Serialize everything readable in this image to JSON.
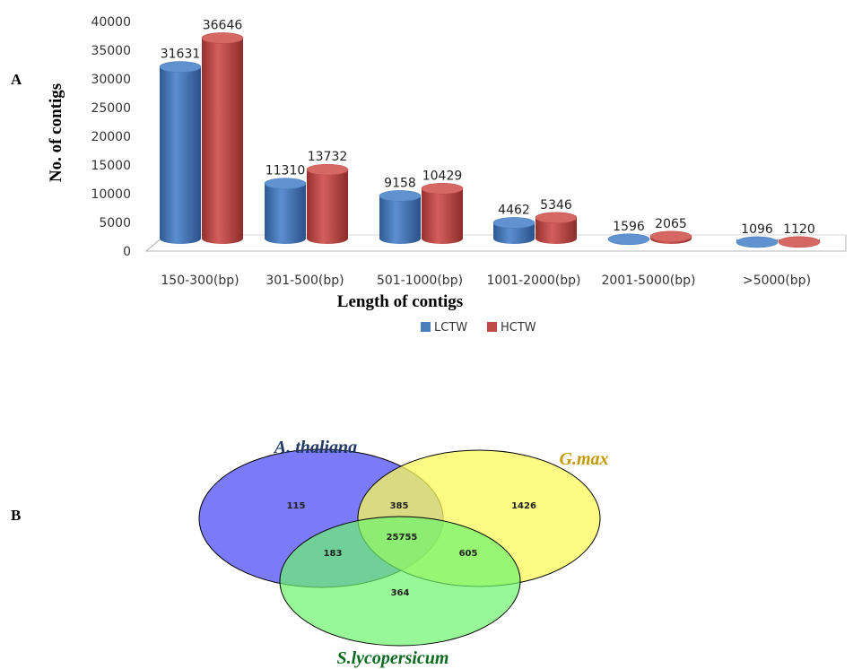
{
  "panels": {
    "a_letter": "A",
    "b_letter": "B"
  },
  "colors": {
    "lctw": "#4a7ebb",
    "hctw": "#be4b48",
    "venn_athaliana": "#7b7bfa",
    "venn_gmax": "#fafa5a",
    "venn_slyco": "#6cf56c",
    "label_athaliana": "#1f3864",
    "label_gmax": "#c49a00",
    "label_slyco": "#0b6b1e"
  },
  "chart_data": [
    {
      "type": "bar",
      "style": "3d-cylinder",
      "categories": [
        "150-300(bp)",
        "301-500(bp)",
        "501-1000(bp)",
        "1001-2000(bp)",
        "2001-5000(bp)",
        ">5000(bp)"
      ],
      "series": [
        {
          "name": "LCTW",
          "values": [
            31631,
            11310,
            9158,
            4462,
            1596,
            1096
          ]
        },
        {
          "name": "HCTW",
          "values": [
            36646,
            13732,
            10429,
            5346,
            2065,
            1120
          ]
        }
      ],
      "yticks": [
        "0",
        "5000",
        "10000",
        "15000",
        "20000",
        "25000",
        "30000",
        "35000",
        "40000"
      ],
      "ylim": [
        0,
        40000
      ],
      "xlabel": "Length of contigs",
      "ylabel": "No. of contigs",
      "legend_position": "bottom",
      "grid": false
    },
    {
      "type": "venn",
      "sets": [
        "A. thaliana",
        "G.max",
        "S.lycopersicum"
      ],
      "regions": {
        "athaliana_only": "115",
        "gmax_only": "1426",
        "slyco_only": "364",
        "athaliana_gmax": "385",
        "athaliana_slyco": "183",
        "gmax_slyco": "605",
        "all_three": "25755"
      }
    }
  ]
}
